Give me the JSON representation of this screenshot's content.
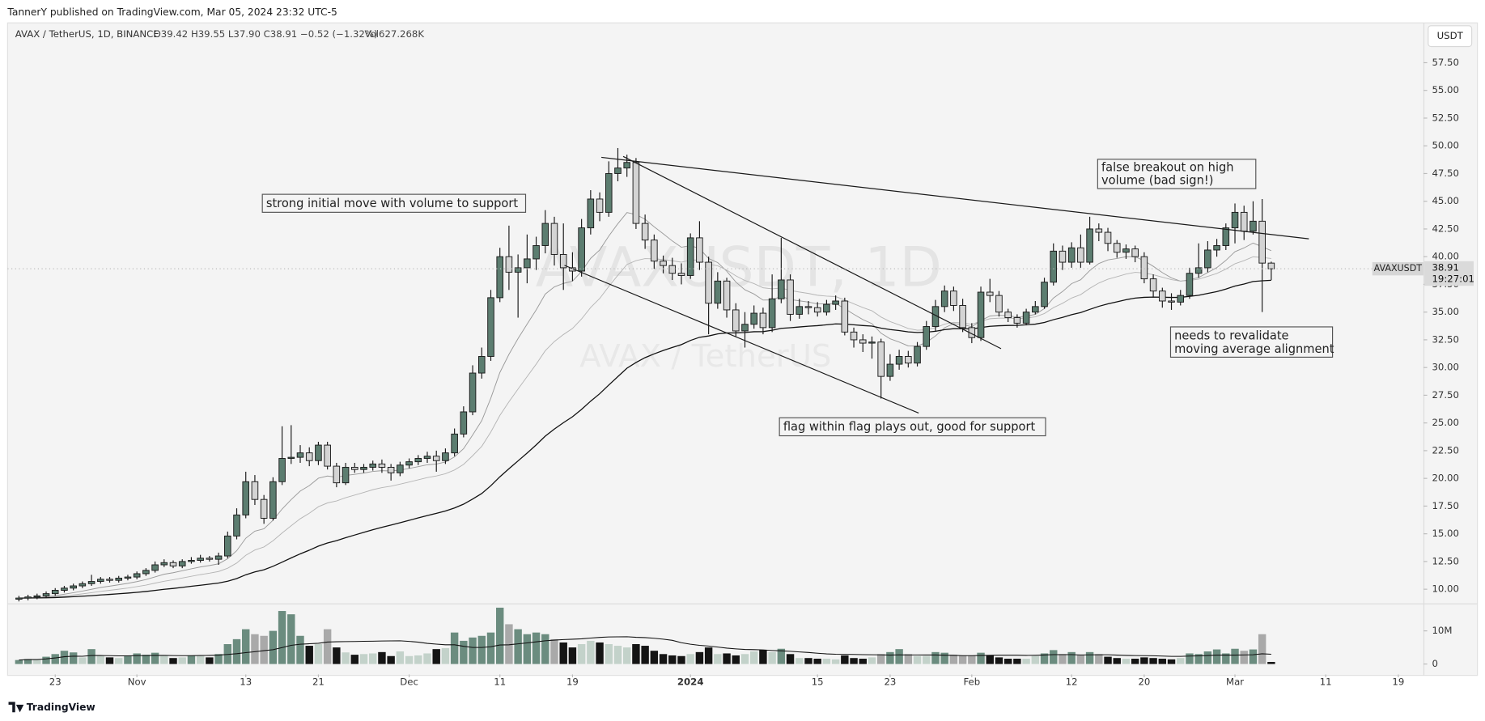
{
  "chart_data": {
    "type": "candlestick",
    "header": "TannerY published on TradingView.com, Mar 05, 2024 23:32 UTC-5",
    "symbol": "AVAX / TetherUS, 1D, BINANCE",
    "ohlc_legend": "O39.42 H39.55 L37.90 C38.91 −0.52 (−1.32%)",
    "volume_legend": "Vol627.268K",
    "currency_button": "USDT",
    "price_tag": "AVAXUSDT",
    "last_price": "38.91",
    "countdown": "19:27:01",
    "watermark": "AVAXUSDT, 1D",
    "watermark_subtitle": "AVAX / TetherUS",
    "branding": "TradingView",
    "annotations": [
      {
        "lines": [
          "strong initial move with volume to support"
        ]
      },
      {
        "lines": [
          "flag within flag plays out, good for support"
        ]
      },
      {
        "lines": [
          "false breakout on high",
          "volume (bad sign!)"
        ]
      },
      {
        "lines": [
          "needs to revalidate",
          "moving average alignment"
        ]
      }
    ],
    "up_color": "#5c7d70",
    "down_color": "#d4d4d4",
    "outline_color": "#1a1a1a",
    "volume_colors": {
      "up": "#6b8c7f",
      "down": "#a9a9a9",
      "up_quiet": "#c3d2ca",
      "down_quiet": "#141414"
    },
    "grid": false,
    "open": [
      9.1,
      9.2,
      9.3,
      9.4,
      9.6,
      9.9,
      10.1,
      10.3,
      10.5,
      10.7,
      10.9,
      10.8,
      11.0,
      11.1,
      11.4,
      11.7,
      12.2,
      12.4,
      12.1,
      12.5,
      12.6,
      12.8,
      12.7,
      13.0,
      14.8,
      16.7,
      19.7,
      18.1,
      16.4,
      19.7,
      21.8,
      21.9,
      22.3,
      21.6,
      23.0,
      21.1,
      19.6,
      21.0,
      20.8,
      21.0,
      21.3,
      21.0,
      20.5,
      21.2,
      21.5,
      21.8,
      22.0,
      21.6,
      22.3,
      24.0,
      26.0,
      29.5,
      31.0,
      36.3,
      40.0,
      38.6,
      39.0,
      39.8,
      41.0,
      43.0,
      40.2,
      39.0,
      38.7,
      42.6,
      45.2,
      44.0,
      47.5,
      48.0,
      48.5,
      43.0,
      41.5,
      39.6,
      39.2,
      38.5,
      38.3,
      41.7,
      39.5,
      35.8,
      37.8,
      35.2,
      33.3,
      33.9,
      34.9,
      33.6,
      36.2,
      37.9,
      34.8,
      35.5,
      35.4,
      35.0,
      35.7,
      36.0,
      33.2,
      32.5,
      32.2,
      32.3,
      29.2,
      30.3,
      31.0,
      30.4,
      31.9,
      33.7,
      35.5,
      36.9,
      35.6,
      33.6,
      32.7,
      36.8,
      36.5,
      35.0,
      34.5,
      34.0,
      35.0,
      35.5,
      37.7,
      40.5,
      39.5,
      40.8,
      39.5,
      42.5,
      42.2,
      41.2,
      40.4,
      40.7,
      40.0,
      38.0,
      36.9,
      36.0,
      35.9,
      36.5,
      38.5,
      39.0,
      40.6,
      41.0,
      42.6,
      44.0,
      42.3,
      43.2,
      39.42
    ],
    "high": [
      9.4,
      9.5,
      9.6,
      9.8,
      10.1,
      10.3,
      10.5,
      10.7,
      11.3,
      11.1,
      11.1,
      11.2,
      11.3,
      11.6,
      11.9,
      12.5,
      12.7,
      12.6,
      12.7,
      12.9,
      13.1,
      13.0,
      13.3,
      15.2,
      17.3,
      20.6,
      20.3,
      18.5,
      20.1,
      24.7,
      24.8,
      23.0,
      22.8,
      23.3,
      23.3,
      21.4,
      21.4,
      21.4,
      21.3,
      21.6,
      21.7,
      21.3,
      21.5,
      21.8,
      22.1,
      22.4,
      22.5,
      22.7,
      24.5,
      26.5,
      30.2,
      31.8,
      37.0,
      40.8,
      42.8,
      40.2,
      42.0,
      41.8,
      44.2,
      43.6,
      43.0,
      40.4,
      43.4,
      46.0,
      45.8,
      48.6,
      49.8,
      49.2,
      48.9,
      43.8,
      42.0,
      40.1,
      39.9,
      39.4,
      42.1,
      43.2,
      40.0,
      38.6,
      38.1,
      35.8,
      35.0,
      35.6,
      35.4,
      38.4,
      41.7,
      38.4,
      36.2,
      36.0,
      35.9,
      36.1,
      36.5,
      36.3,
      33.6,
      33.0,
      32.8,
      32.6,
      31.2,
      31.6,
      31.5,
      32.3,
      34.2,
      36.1,
      37.4,
      37.3,
      36.2,
      34.0,
      37.3,
      38.0,
      36.9,
      35.3,
      34.8,
      35.3,
      36.0,
      38.1,
      41.2,
      41.0,
      41.3,
      42.0,
      43.6,
      43.0,
      42.6,
      41.5,
      41.1,
      41.0,
      40.4,
      38.4,
      37.2,
      36.7,
      37.0,
      39.0,
      41.2,
      41.4,
      41.6,
      43.0,
      44.8,
      44.6,
      45.0,
      45.2,
      39.55
    ],
    "low": [
      8.9,
      9.0,
      9.1,
      9.2,
      9.4,
      9.7,
      9.9,
      10.1,
      10.3,
      10.5,
      10.6,
      10.6,
      10.8,
      10.9,
      11.2,
      11.5,
      12.0,
      11.9,
      11.9,
      12.3,
      12.4,
      12.5,
      12.2,
      12.8,
      14.5,
      16.4,
      17.6,
      15.9,
      16.2,
      19.4,
      21.3,
      21.4,
      21.1,
      21.2,
      20.8,
      19.2,
      19.4,
      20.5,
      20.5,
      20.7,
      20.5,
      19.8,
      20.2,
      20.9,
      21.2,
      21.4,
      20.6,
      21.3,
      22.0,
      23.7,
      25.7,
      29.0,
      30.6,
      35.9,
      37.0,
      34.5,
      37.6,
      38.8,
      40.3,
      39.2,
      37.0,
      37.8,
      38.2,
      42.0,
      43.2,
      43.6,
      46.8,
      47.2,
      42.5,
      40.7,
      38.9,
      38.5,
      37.9,
      37.5,
      38.0,
      38.8,
      33.0,
      35.3,
      34.5,
      32.8,
      31.8,
      33.5,
      33.0,
      33.2,
      35.8,
      34.2,
      34.4,
      34.8,
      34.6,
      34.7,
      35.2,
      32.9,
      31.8,
      31.4,
      30.8,
      27.2,
      28.8,
      29.8,
      30.0,
      30.1,
      31.6,
      33.3,
      35.0,
      35.1,
      33.2,
      32.2,
      32.4,
      35.9,
      34.6,
      34.1,
      33.6,
      33.8,
      34.8,
      35.3,
      37.4,
      38.8,
      39.0,
      39.0,
      39.3,
      41.4,
      40.5,
      39.9,
      39.8,
      39.5,
      37.6,
      36.3,
      35.4,
      35.2,
      35.6,
      36.2,
      38.1,
      38.6,
      40.0,
      40.6,
      41.2,
      41.5,
      42.0,
      35.0,
      37.9
    ],
    "close": [
      9.2,
      9.3,
      9.4,
      9.6,
      9.9,
      10.1,
      10.3,
      10.5,
      10.7,
      10.9,
      10.8,
      11.0,
      11.1,
      11.4,
      11.7,
      12.2,
      12.4,
      12.1,
      12.5,
      12.6,
      12.8,
      12.7,
      13.0,
      14.8,
      16.7,
      19.7,
      18.1,
      16.4,
      19.7,
      21.8,
      21.9,
      22.3,
      21.6,
      23.0,
      21.1,
      19.6,
      21.0,
      20.8,
      21.0,
      21.3,
      21.0,
      20.5,
      21.2,
      21.5,
      21.8,
      22.0,
      21.6,
      22.3,
      24.0,
      26.0,
      29.5,
      31.0,
      36.3,
      40.0,
      38.6,
      39.0,
      39.8,
      41.0,
      43.0,
      40.2,
      39.0,
      38.7,
      42.6,
      45.2,
      44.0,
      47.5,
      48.0,
      48.5,
      43.0,
      41.5,
      39.6,
      39.2,
      38.5,
      38.3,
      41.7,
      39.5,
      35.8,
      37.8,
      35.2,
      33.3,
      33.9,
      34.9,
      33.6,
      36.2,
      37.9,
      34.8,
      35.5,
      35.4,
      35.0,
      35.7,
      36.0,
      33.2,
      32.5,
      32.2,
      32.3,
      29.2,
      30.3,
      31.0,
      30.4,
      31.9,
      33.7,
      35.5,
      36.9,
      35.6,
      33.6,
      32.7,
      36.8,
      36.5,
      35.0,
      34.5,
      34.0,
      35.0,
      35.5,
      37.7,
      40.5,
      39.5,
      40.8,
      39.5,
      42.5,
      42.2,
      41.2,
      40.4,
      40.7,
      40.0,
      38.0,
      36.9,
      36.0,
      35.9,
      36.5,
      38.5,
      39.0,
      40.6,
      41.0,
      42.6,
      44.0,
      42.3,
      43.2,
      39.42,
      38.91
    ],
    "volume": [
      1200000,
      1500000,
      1300000,
      2200000,
      3000000,
      4000000,
      3500000,
      2000000,
      4500000,
      2500000,
      2000000,
      1800000,
      2600000,
      3200000,
      2800000,
      3400000,
      2500000,
      1800000,
      2000000,
      2600000,
      2400000,
      2000000,
      3000000,
      6000000,
      7500000,
      10500000,
      9000000,
      8500000,
      10000000,
      16000000,
      15000000,
      8500000,
      5500000,
      6000000,
      10500000,
      5000000,
      3500000,
      2800000,
      3000000,
      3200000,
      3600000,
      2400000,
      3800000,
      2400000,
      2600000,
      3200000,
      4500000,
      4800000,
      9500000,
      7000000,
      8000000,
      8500000,
      9500000,
      17000000,
      12000000,
      10500000,
      9000000,
      9500000,
      9000000,
      7500000,
      6500000,
      5000000,
      6000000,
      7000000,
      6500000,
      6000000,
      5500000,
      5000000,
      6000000,
      5500000,
      4000000,
      3000000,
      2600000,
      2400000,
      3000000,
      3600000,
      5000000,
      3000000,
      3200000,
      2600000,
      3000000,
      3800000,
      4200000,
      3600000,
      4600000,
      3000000,
      1800000,
      1800000,
      1600000,
      1600000,
      1400000,
      2600000,
      1800000,
      1600000,
      2000000,
      3000000,
      3600000,
      4500000,
      3000000,
      2400000,
      2400000,
      3600000,
      3400000,
      2800000,
      2600000,
      2600000,
      3400000,
      2600000,
      2000000,
      1600000,
      1600000,
      1600000,
      2400000,
      3200000,
      4200000,
      3000000,
      3600000,
      2800000,
      3600000,
      3000000,
      2200000,
      1800000,
      1600000,
      1600000,
      2000000,
      1800000,
      1600000,
      1400000,
      1800000,
      3200000,
      3000000,
      3800000,
      4400000,
      3200000,
      4600000,
      4000000,
      4400000,
      9000000,
      627268
    ],
    "xlim": [
      -1.25,
      154.77
    ],
    "xticks": [
      {
        "value": 4,
        "label": "23"
      },
      {
        "value": 13,
        "label": "Nov"
      },
      {
        "value": 25,
        "label": "13"
      },
      {
        "value": 33,
        "label": "21"
      },
      {
        "value": 43,
        "label": "Dec"
      },
      {
        "value": 53,
        "label": "11"
      },
      {
        "value": 61,
        "label": "19"
      },
      {
        "value": 74,
        "label": "2024"
      },
      {
        "value": 88,
        "label": "15"
      },
      {
        "value": 96,
        "label": "23"
      },
      {
        "value": 105,
        "label": "Feb"
      },
      {
        "value": 116,
        "label": "12"
      },
      {
        "value": 124,
        "label": "20"
      },
      {
        "value": 134,
        "label": "Mar"
      },
      {
        "value": 144,
        "label": "11"
      },
      {
        "value": 152,
        "label": "19"
      }
    ],
    "ylim": [
      8.72,
      61.09
    ],
    "yticks": [
      {
        "value": 10,
        "label": "10.00"
      },
      {
        "value": 12.5,
        "label": "12.50"
      },
      {
        "value": 15,
        "label": "15.00"
      },
      {
        "value": 17.5,
        "label": "17.50"
      },
      {
        "value": 20,
        "label": "20.00"
      },
      {
        "value": 22.5,
        "label": "22.50"
      },
      {
        "value": 25,
        "label": "25.00"
      },
      {
        "value": 27.5,
        "label": "27.50"
      },
      {
        "value": 30,
        "label": "30.00"
      },
      {
        "value": 32.5,
        "label": "32.50"
      },
      {
        "value": 35,
        "label": "35.00"
      },
      {
        "value": 37.5,
        "label": "37.50"
      },
      {
        "value": 40,
        "label": "40.00"
      },
      {
        "value": 42.5,
        "label": "42.50"
      },
      {
        "value": 45,
        "label": "45.00"
      },
      {
        "value": 47.5,
        "label": "47.50"
      },
      {
        "value": 50,
        "label": "50.00"
      },
      {
        "value": 52.5,
        "label": "52.50"
      },
      {
        "value": 55,
        "label": "55.00"
      },
      {
        "value": 57.5,
        "label": "57.50"
      }
    ],
    "volume_lim": [
      -3140000,
      18000000
    ],
    "volume_ticks": [
      0,
      {
        "value": 10000000,
        "label": "10M"
      }
    ]
  }
}
